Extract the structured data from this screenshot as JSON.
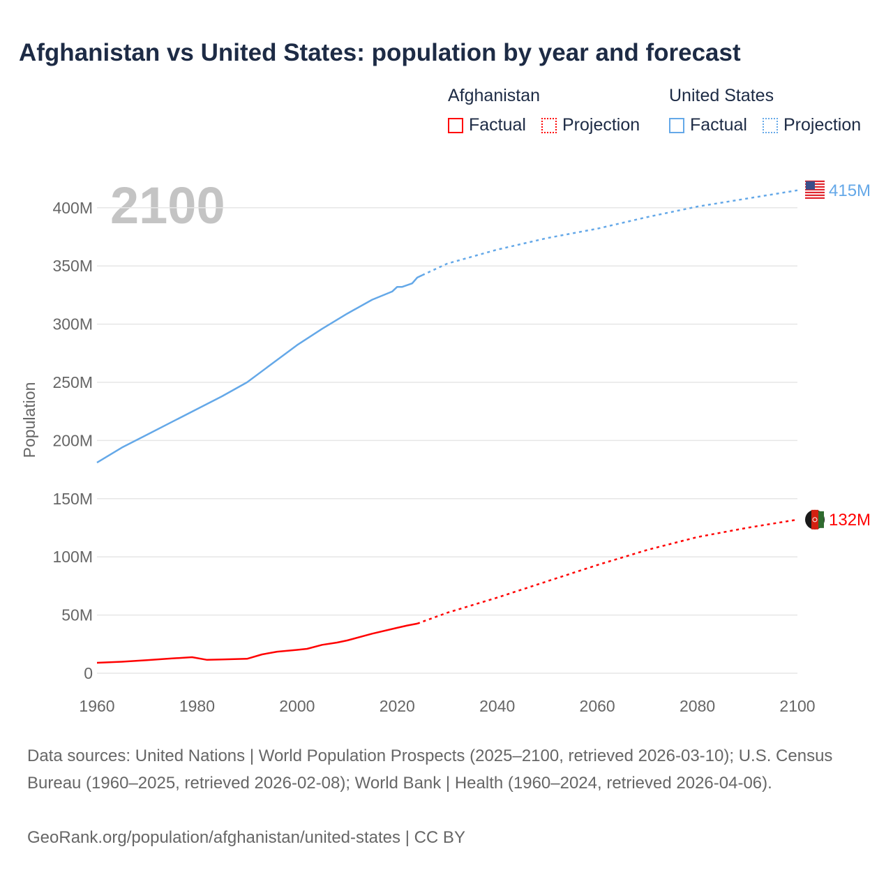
{
  "chart_data": {
    "type": "line",
    "title": "Afghanistan vs United States: population by year and forecast",
    "xlabel": "",
    "ylabel": "Population",
    "xlim": [
      1960,
      2100
    ],
    "ylim": [
      0,
      420000000
    ],
    "x_ticks": [
      "1960",
      "1980",
      "2000",
      "2020",
      "2040",
      "2060",
      "2080",
      "2100"
    ],
    "y_ticks": [
      "0",
      "50M",
      "100M",
      "150M",
      "200M",
      "250M",
      "300M",
      "350M",
      "400M"
    ],
    "year_watermark": "2100",
    "grid": true,
    "legend": {
      "placement": "top-right",
      "groups": [
        {
          "name": "Afghanistan",
          "items": [
            "Factual",
            "Projection"
          ]
        },
        {
          "name": "United States",
          "items": [
            "Factual",
            "Projection"
          ]
        }
      ]
    },
    "series": [
      {
        "name": "Afghanistan",
        "color": "#ff0000",
        "end_label": "132M",
        "factual": {
          "x": [
            1960,
            1965,
            1970,
            1975,
            1979,
            1982,
            1985,
            1990,
            1993,
            1996,
            2000,
            2002,
            2005,
            2008,
            2010,
            2015,
            2020,
            2022,
            2024
          ],
          "y": [
            9.0,
            9.9,
            11.2,
            12.7,
            13.8,
            11.5,
            11.8,
            12.4,
            16.2,
            18.5,
            20.1,
            21.0,
            24.4,
            26.4,
            28.2,
            34.0,
            39.0,
            41.0,
            42.6
          ]
        },
        "projection": {
          "x": [
            2024,
            2030,
            2040,
            2050,
            2060,
            2070,
            2080,
            2090,
            2100
          ],
          "y": [
            42.6,
            52,
            65,
            79,
            93,
            106,
            117,
            125,
            132
          ]
        }
      },
      {
        "name": "United States",
        "color": "#64a8e8",
        "end_label": "415M",
        "factual": {
          "x": [
            1960,
            1965,
            1970,
            1975,
            1980,
            1985,
            1990,
            1995,
            2000,
            2005,
            2010,
            2015,
            2019,
            2020,
            2021,
            2023,
            2024,
            2025
          ],
          "y": [
            181,
            194,
            205,
            216,
            227,
            238,
            250,
            266,
            282,
            296,
            309,
            321,
            328,
            332,
            332,
            335,
            340,
            342
          ]
        },
        "projection": {
          "x": [
            2025,
            2030,
            2040,
            2050,
            2060,
            2070,
            2080,
            2090,
            2100
          ],
          "y": [
            342,
            352,
            364,
            374,
            382,
            392,
            401,
            408,
            415
          ]
        }
      }
    ]
  },
  "footer": {
    "sources": "Data sources: United Nations | World Population Prospects (2025–2100, retrieved 2026-03-10); U.S. Census Bureau (1960–2025, retrieved 2026-02-08); World Bank | Health (1960–2024, retrieved 2026-04-06).",
    "credit": "GeoRank.org/population/afghanistan/united-states | CC BY"
  }
}
